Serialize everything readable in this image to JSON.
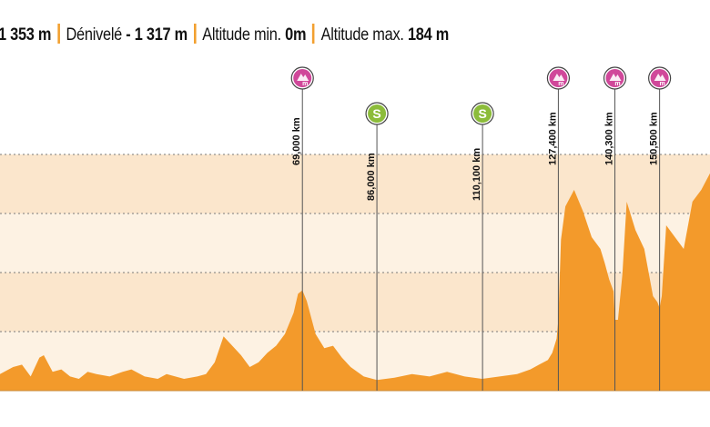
{
  "header": {
    "distance_value": "1 353 m",
    "elevation_label": "Dénivelé",
    "elevation_value": "- 1 317 m",
    "alt_min_label": "Altitude min.",
    "alt_min_value": "0m",
    "alt_max_label": "Altitude max.",
    "alt_max_value": "184 m"
  },
  "colors": {
    "profile_fill": "#f39a2b",
    "band_light": "#fdf2e3",
    "band_dark": "#fbe6cc",
    "gridline": "#7a7a7a",
    "climb_marker": "#d0489a",
    "sprint_marker": "#8cbc3a",
    "separator": "#f2a030"
  },
  "chart_data": {
    "type": "area",
    "title": "",
    "xlabel": "",
    "ylabel": "",
    "x_unit": "km",
    "xlim": [
      0,
      162
    ],
    "ylim": [
      0,
      200
    ],
    "grid": true,
    "profile": {
      "x": [
        0,
        3,
        5,
        7,
        9,
        10,
        12,
        14,
        16,
        18,
        20,
        22,
        25,
        28,
        30,
        33,
        36,
        38,
        40,
        42,
        45,
        47,
        49,
        51,
        53,
        55,
        57,
        59,
        61,
        63,
        65,
        67,
        68,
        69,
        70,
        72,
        74,
        76,
        78,
        80,
        83,
        86,
        90,
        94,
        98,
        102,
        106,
        110,
        114,
        118,
        121,
        123,
        125,
        126,
        127,
        127.4,
        128,
        129,
        131,
        133,
        135,
        137,
        138,
        139,
        140,
        140.3,
        141,
        142,
        143,
        145,
        147,
        148,
        149,
        150,
        150.5,
        151,
        152,
        154,
        156,
        158,
        160,
        162
      ],
      "y": [
        14,
        20,
        22,
        12,
        28,
        30,
        16,
        18,
        12,
        10,
        16,
        14,
        12,
        16,
        18,
        12,
        10,
        14,
        12,
        10,
        12,
        14,
        24,
        46,
        38,
        30,
        20,
        24,
        32,
        38,
        48,
        66,
        82,
        85,
        76,
        48,
        36,
        38,
        28,
        20,
        12,
        9,
        11,
        14,
        12,
        16,
        12,
        10,
        12,
        14,
        18,
        22,
        26,
        32,
        44,
        60,
        128,
        156,
        170,
        152,
        130,
        120,
        108,
        94,
        84,
        60,
        60,
        98,
        160,
        136,
        120,
        100,
        80,
        75,
        70,
        80,
        140,
        130,
        120,
        160,
        170,
        184
      ]
    },
    "markers": [
      {
        "km": 69.0,
        "label": "69,000 km",
        "type": "climb"
      },
      {
        "km": 86.0,
        "label": "86,000 km",
        "type": "sprint"
      },
      {
        "km": 110.1,
        "label": "110,100 km",
        "type": "sprint"
      },
      {
        "km": 127.4,
        "label": "127,400 km",
        "type": "climb"
      },
      {
        "km": 140.3,
        "label": "140,300 km",
        "type": "climb"
      },
      {
        "km": 150.5,
        "label": "150,500 km",
        "type": "climb"
      }
    ],
    "marker_glyphs": {
      "climb": "m",
      "sprint": "S"
    }
  }
}
